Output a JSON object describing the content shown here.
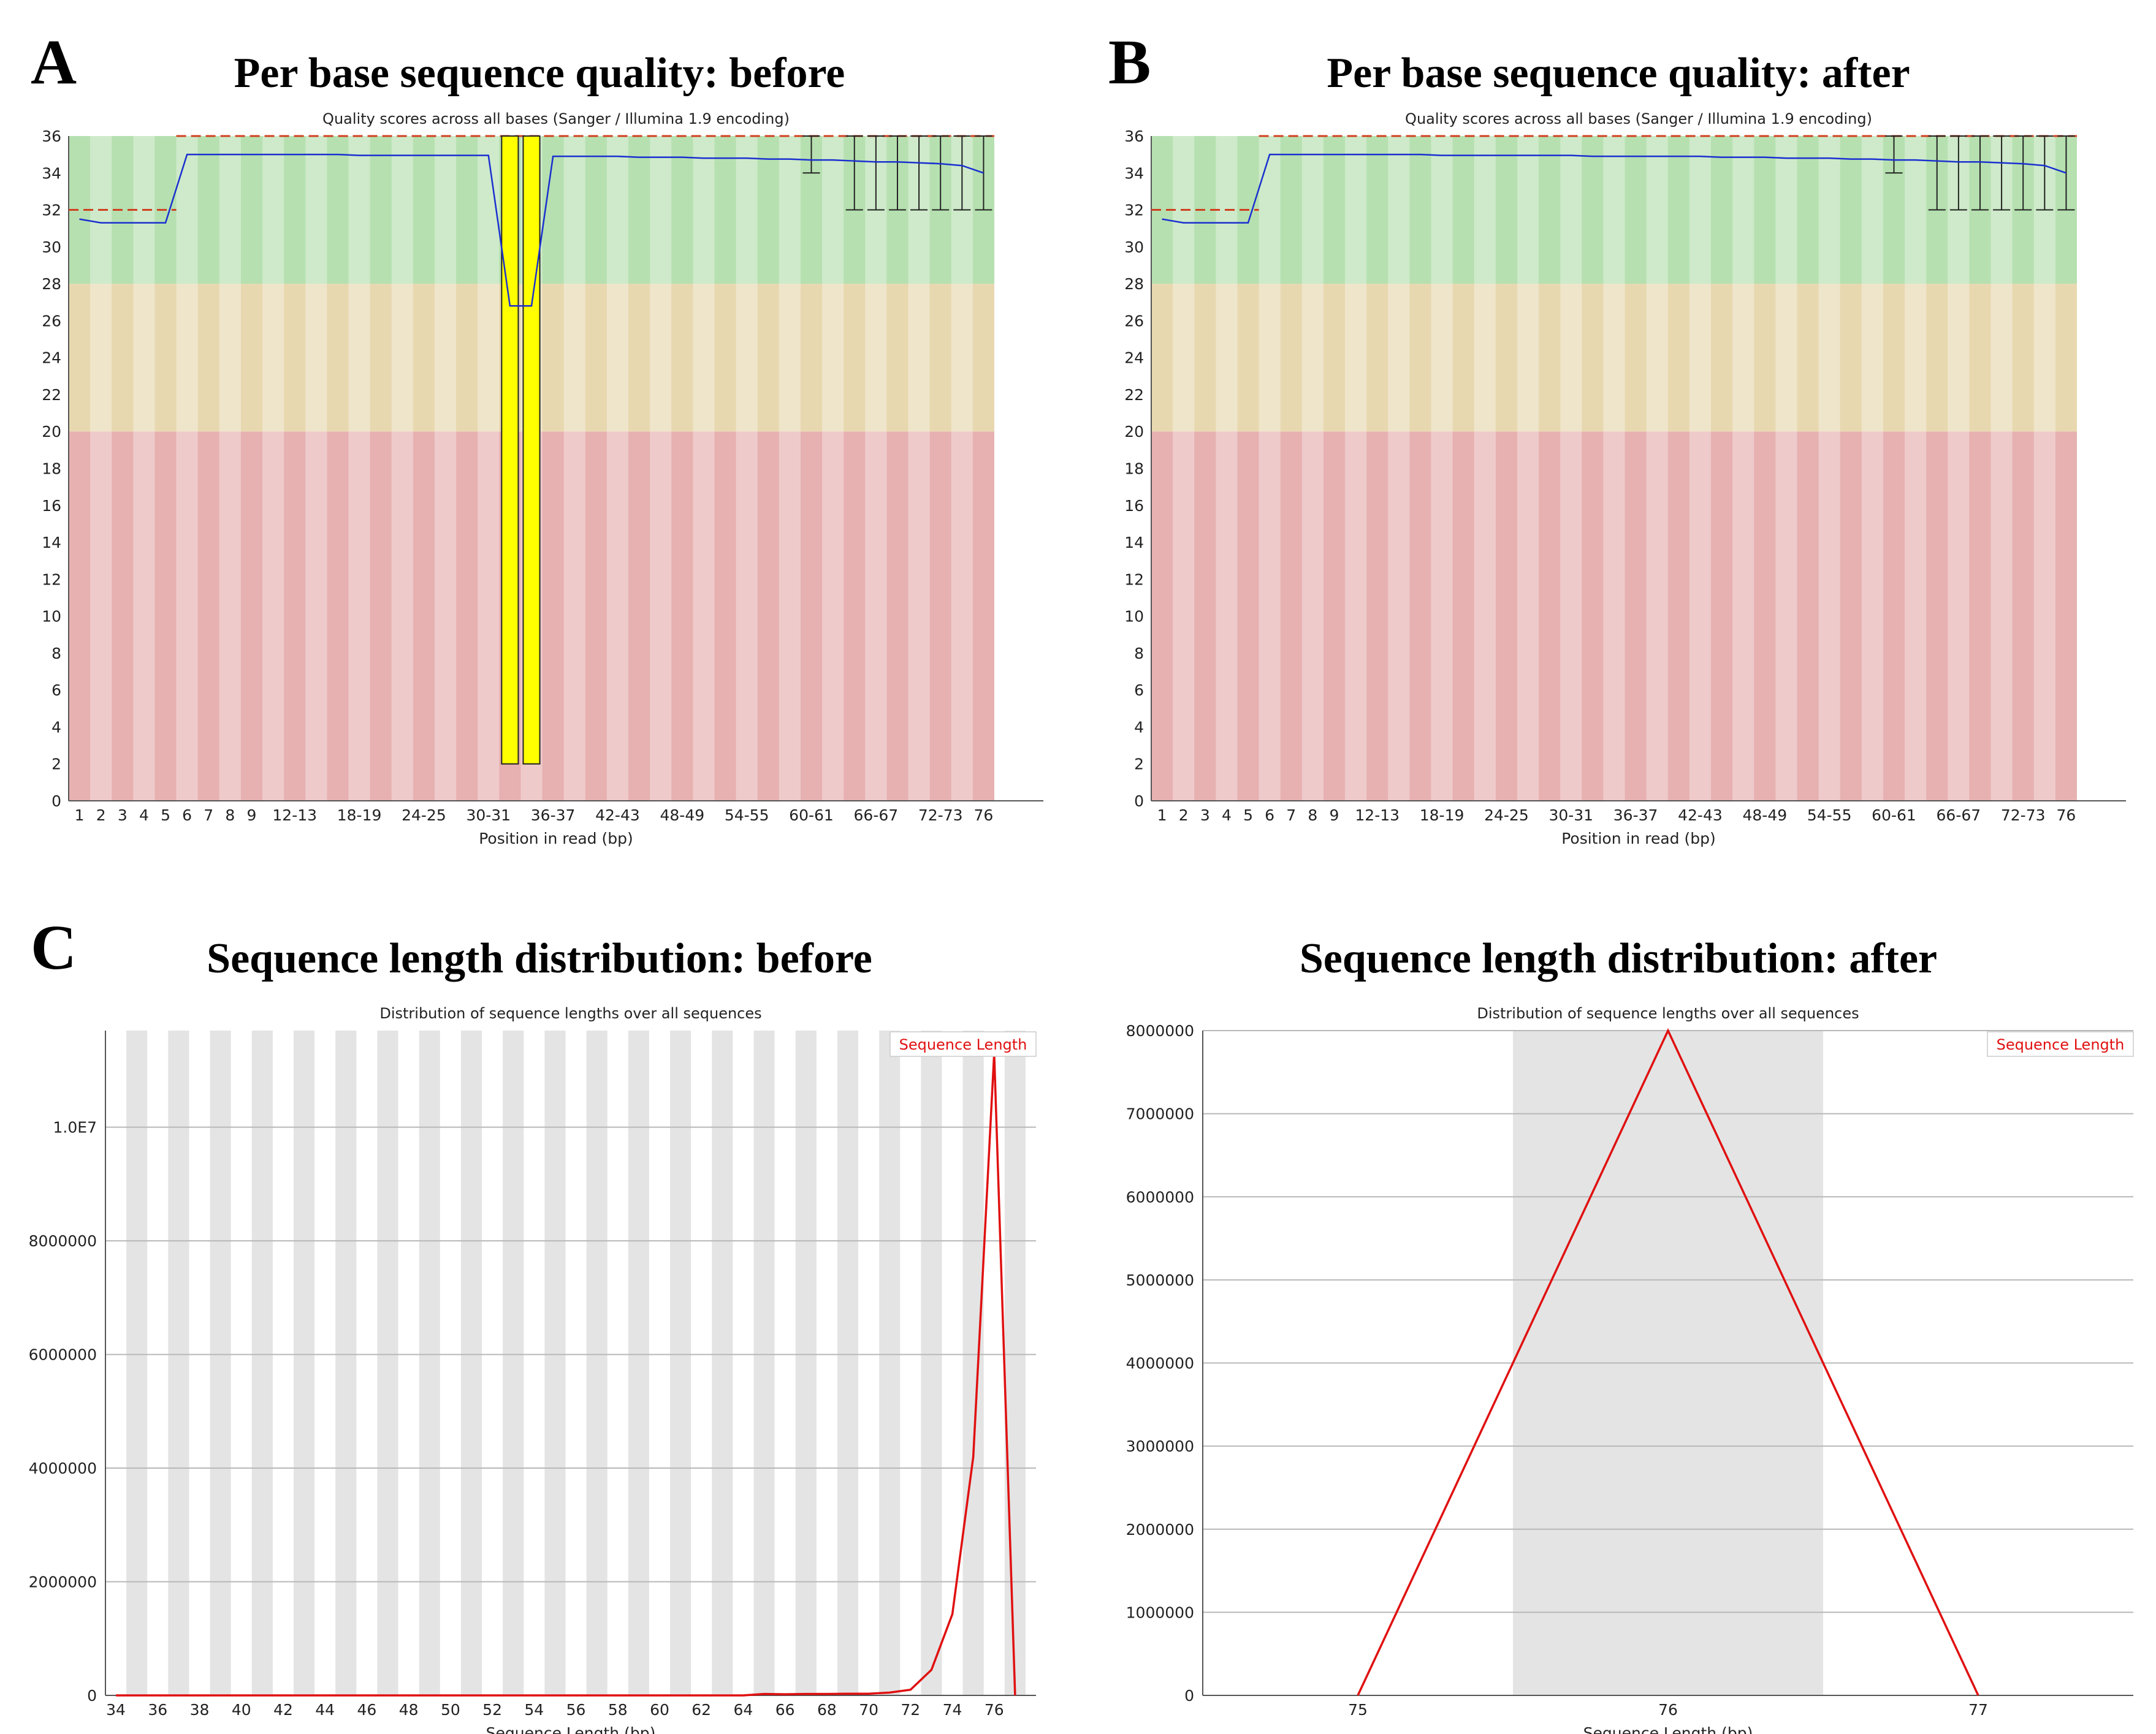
{
  "panels": {
    "A": "A",
    "B": "B",
    "C": "C"
  },
  "chart_data": [
    {
      "id": "A",
      "type": "box",
      "title": "Per base sequence quality: before",
      "subtitle": "Quality scores across all bases (Sanger / Illumina 1.9 encoding)",
      "xlabel": "Position in read (bp)",
      "ylabel": "",
      "ylim": [
        0,
        36
      ],
      "y_ticks": [
        "0",
        "2",
        "4",
        "6",
        "8",
        "10",
        "12",
        "14",
        "16",
        "18",
        "20",
        "22",
        "24",
        "26",
        "28",
        "30",
        "32",
        "34",
        "36"
      ],
      "zones": [
        {
          "name": "poor",
          "from": 0,
          "to": 20,
          "color": "#e7b1b1"
        },
        {
          "name": "reasonable",
          "from": 20,
          "to": 28,
          "color": "#e8d8b0"
        },
        {
          "name": "good",
          "from": 28,
          "to": 36,
          "color": "#b6e0b0"
        }
      ],
      "categories": [
        "1",
        "2",
        "3",
        "4",
        "5",
        "6",
        "7",
        "8",
        "9",
        "10-11",
        "12-13",
        "14-15",
        "16-17",
        "18-19",
        "20-21",
        "22-23",
        "24-25",
        "26-27",
        "28-29",
        "30-31",
        "32-33",
        "34-35",
        "36-37",
        "38-39",
        "40-41",
        "42-43",
        "44-45",
        "46-47",
        "48-49",
        "50-51",
        "52-53",
        "54-55",
        "56-57",
        "58-59",
        "60-61",
        "62-63",
        "64-65",
        "66-67",
        "68-69",
        "70-71",
        "72-73",
        "74-75",
        "76"
      ],
      "tick_labels": [
        "1",
        "2",
        "3",
        "4",
        "5",
        "6",
        "7",
        "8",
        "9",
        "12-13",
        "18-19",
        "24-25",
        "30-31",
        "36-37",
        "42-43",
        "48-49",
        "54-55",
        "60-61",
        "66-67",
        "72-73",
        "76"
      ],
      "mean": [
        31.5,
        31.3,
        31.3,
        31.3,
        31.3,
        35.0,
        35.0,
        35.0,
        35.0,
        35.0,
        35.0,
        35.0,
        35.0,
        34.95,
        34.95,
        34.95,
        34.95,
        34.95,
        34.95,
        34.95,
        26.8,
        26.8,
        34.9,
        34.9,
        34.9,
        34.9,
        34.85,
        34.85,
        34.85,
        34.8,
        34.8,
        34.8,
        34.75,
        34.75,
        34.7,
        34.7,
        34.65,
        34.6,
        34.6,
        34.55,
        34.5,
        34.4,
        34.0
      ],
      "quality_boxes": [
        {
          "category": "32-33",
          "low": 2,
          "high": 36,
          "color": "#ffff00"
        },
        {
          "category": "34-35",
          "low": 2,
          "high": 36,
          "color": "#ffff00"
        }
      ],
      "whisker_categories": [
        "60-61",
        "64-65",
        "66-67",
        "68-69",
        "70-71",
        "72-73",
        "74-75",
        "76"
      ],
      "whisker_high": 36,
      "whisker_low": [
        34,
        32,
        32,
        32,
        32,
        32,
        32,
        32
      ],
      "reference_lines": [
        {
          "from_category": "1",
          "to_category": "5",
          "y": 32,
          "color": "#d04020"
        },
        {
          "from_category": "6",
          "to_category": "76",
          "y": 36,
          "color": "#d04020"
        }
      ]
    },
    {
      "id": "B",
      "type": "box",
      "title": "Per base sequence quality: after",
      "subtitle": "Quality scores across all bases (Sanger / Illumina 1.9 encoding)",
      "xlabel": "Position in read (bp)",
      "ylabel": "",
      "ylim": [
        0,
        36
      ],
      "y_ticks": [
        "0",
        "2",
        "4",
        "6",
        "8",
        "10",
        "12",
        "14",
        "16",
        "18",
        "20",
        "22",
        "24",
        "26",
        "28",
        "30",
        "32",
        "34",
        "36"
      ],
      "zones": [
        {
          "name": "poor",
          "from": 0,
          "to": 20,
          "color": "#e7b1b1"
        },
        {
          "name": "reasonable",
          "from": 20,
          "to": 28,
          "color": "#e8d8b0"
        },
        {
          "name": "good",
          "from": 28,
          "to": 36,
          "color": "#b6e0b0"
        }
      ],
      "categories": [
        "1",
        "2",
        "3",
        "4",
        "5",
        "6",
        "7",
        "8",
        "9",
        "10-11",
        "12-13",
        "14-15",
        "16-17",
        "18-19",
        "20-21",
        "22-23",
        "24-25",
        "26-27",
        "28-29",
        "30-31",
        "32-33",
        "34-35",
        "36-37",
        "38-39",
        "40-41",
        "42-43",
        "44-45",
        "46-47",
        "48-49",
        "50-51",
        "52-53",
        "54-55",
        "56-57",
        "58-59",
        "60-61",
        "62-63",
        "64-65",
        "66-67",
        "68-69",
        "70-71",
        "72-73",
        "74-75",
        "76"
      ],
      "tick_labels": [
        "1",
        "2",
        "3",
        "4",
        "5",
        "6",
        "7",
        "8",
        "9",
        "12-13",
        "18-19",
        "24-25",
        "30-31",
        "36-37",
        "42-43",
        "48-49",
        "54-55",
        "60-61",
        "66-67",
        "72-73",
        "76"
      ],
      "mean": [
        31.5,
        31.3,
        31.3,
        31.3,
        31.3,
        35.0,
        35.0,
        35.0,
        35.0,
        35.0,
        35.0,
        35.0,
        35.0,
        34.95,
        34.95,
        34.95,
        34.95,
        34.95,
        34.95,
        34.95,
        34.9,
        34.9,
        34.9,
        34.9,
        34.9,
        34.9,
        34.85,
        34.85,
        34.85,
        34.8,
        34.8,
        34.8,
        34.75,
        34.75,
        34.7,
        34.7,
        34.65,
        34.6,
        34.6,
        34.55,
        34.5,
        34.4,
        34.0
      ],
      "quality_boxes": [],
      "whisker_categories": [
        "60-61",
        "64-65",
        "66-67",
        "68-69",
        "70-71",
        "72-73",
        "74-75",
        "76"
      ],
      "whisker_high": 36,
      "whisker_low": [
        34,
        32,
        32,
        32,
        32,
        32,
        32,
        32
      ],
      "reference_lines": [
        {
          "from_category": "1",
          "to_category": "5",
          "y": 32,
          "color": "#d04020"
        },
        {
          "from_category": "6",
          "to_category": "76",
          "y": 36,
          "color": "#d04020"
        }
      ]
    },
    {
      "id": "C",
      "type": "line",
      "title": "Sequence length distribution: before",
      "subtitle": "Distribution of sequence lengths over all sequences",
      "xlabel": "Sequence Length (bp)",
      "ylabel": "",
      "x": [
        34,
        35,
        36,
        37,
        38,
        39,
        40,
        41,
        42,
        43,
        44,
        45,
        46,
        47,
        48,
        49,
        50,
        51,
        52,
        53,
        54,
        55,
        56,
        57,
        58,
        59,
        60,
        61,
        62,
        63,
        64,
        65,
        66,
        67,
        68,
        69,
        70,
        71,
        72,
        73,
        74,
        75,
        76,
        77
      ],
      "tick_labels": [
        "34",
        "36",
        "38",
        "40",
        "42",
        "44",
        "46",
        "48",
        "50",
        "52",
        "54",
        "56",
        "58",
        "60",
        "62",
        "64",
        "66",
        "68",
        "70",
        "72",
        "74",
        "76"
      ],
      "series": [
        {
          "name": "Sequence Length",
          "color": "#e01010",
          "values": [
            0,
            0,
            0,
            0,
            0,
            0,
            0,
            0,
            0,
            0,
            0,
            0,
            0,
            0,
            0,
            0,
            0,
            0,
            0,
            0,
            0,
            0,
            0,
            0,
            0,
            0,
            0,
            0,
            0,
            0,
            0,
            25000,
            20000,
            25000,
            25000,
            30000,
            30000,
            50000,
            100000,
            450000,
            1430000,
            4200000,
            11300000,
            0
          ]
        }
      ],
      "ylim": [
        0,
        11700000
      ],
      "y_ticks": [
        {
          "value": 0,
          "label": "0"
        },
        {
          "value": 2000000,
          "label": "2000000"
        },
        {
          "value": 4000000,
          "label": "4000000"
        },
        {
          "value": 6000000,
          "label": "6000000"
        },
        {
          "value": 8000000,
          "label": "8000000"
        },
        {
          "value": 10000000,
          "label": "1.0E7"
        }
      ],
      "legend": "Sequence Length"
    },
    {
      "id": "D",
      "type": "line",
      "title": "Sequence length distribution: after",
      "subtitle": "Distribution of sequence lengths over all sequences",
      "xlabel": "Sequence Length (bp)",
      "ylabel": "",
      "x": [
        75,
        76,
        77
      ],
      "xlim": [
        74.5,
        77.5
      ],
      "tick_labels": [
        "75",
        "76",
        "77"
      ],
      "series": [
        {
          "name": "Sequence Length",
          "color": "#e01010",
          "values": [
            0,
            8000000,
            0
          ]
        }
      ],
      "ylim": [
        0,
        8000000
      ],
      "y_ticks": [
        {
          "value": 0,
          "label": "0"
        },
        {
          "value": 1000000,
          "label": "1000000"
        },
        {
          "value": 2000000,
          "label": "2000000"
        },
        {
          "value": 3000000,
          "label": "3000000"
        },
        {
          "value": 4000000,
          "label": "4000000"
        },
        {
          "value": 5000000,
          "label": "5000000"
        },
        {
          "value": 6000000,
          "label": "6000000"
        },
        {
          "value": 7000000,
          "label": "7000000"
        },
        {
          "value": 8000000,
          "label": "8000000"
        }
      ],
      "legend": "Sequence Length"
    }
  ]
}
